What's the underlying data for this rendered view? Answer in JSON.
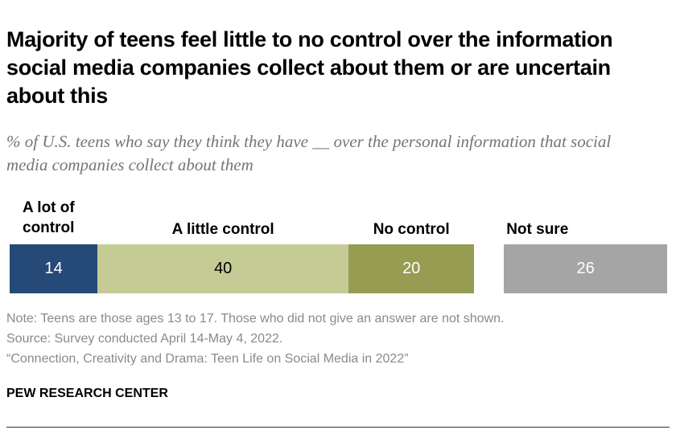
{
  "chart_data": {
    "type": "bar",
    "orientation": "horizontal-stacked",
    "title": "Majority of teens feel little to no control over the information social media companies collect about them or are uncertain about this",
    "subtitle": "% of U.S. teens who say they think they have __ over the personal information that social media companies collect about them",
    "categories": [
      "A lot of control",
      "A little control",
      "No control",
      "Not sure"
    ],
    "values": [
      14,
      40,
      20,
      26
    ],
    "colors": [
      "#264a78",
      "#c5cb95",
      "#969c52",
      "#a5a5a5"
    ],
    "label_colors": [
      "#ffffff",
      "#000000",
      "#ffffff",
      "#ffffff"
    ]
  },
  "notes": [
    "Note: Teens are those ages 13 to 17. Those who did not give an answer are not shown.",
    "Source: Survey conducted April 14-May 4, 2022.",
    "“Connection, Creativity and Drama: Teen Life on Social Media in 2022”"
  ],
  "brand": "PEW RESEARCH CENTER"
}
